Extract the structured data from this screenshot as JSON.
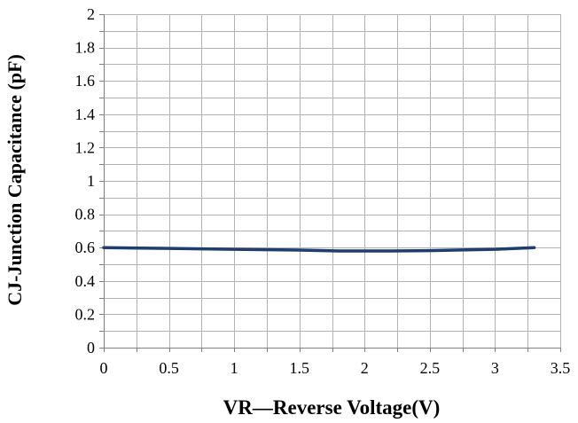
{
  "chart_data": {
    "type": "line",
    "xlabel": "VR—Reverse Voltage(V)",
    "ylabel": "CJ-Junction Capacitance (pF)",
    "xlim": [
      0,
      3.5
    ],
    "ylim": [
      0,
      2
    ],
    "x_ticks": [
      "0",
      "0.5",
      "1",
      "1.5",
      "2",
      "2.5",
      "3",
      "3.5"
    ],
    "y_ticks": [
      "0",
      "0.2",
      "0.4",
      "0.6",
      "0.8",
      "1",
      "1.2",
      "1.4",
      "1.6",
      "1.8",
      "2"
    ],
    "grid": true,
    "series": [
      {
        "color": "#1f3d6e",
        "x": [
          0,
          0.5,
          1.0,
          1.5,
          1.8,
          2.0,
          2.2,
          2.5,
          3.0,
          3.3
        ],
        "y": [
          0.6,
          0.595,
          0.59,
          0.585,
          0.58,
          0.58,
          0.58,
          0.582,
          0.59,
          0.6
        ]
      }
    ]
  }
}
